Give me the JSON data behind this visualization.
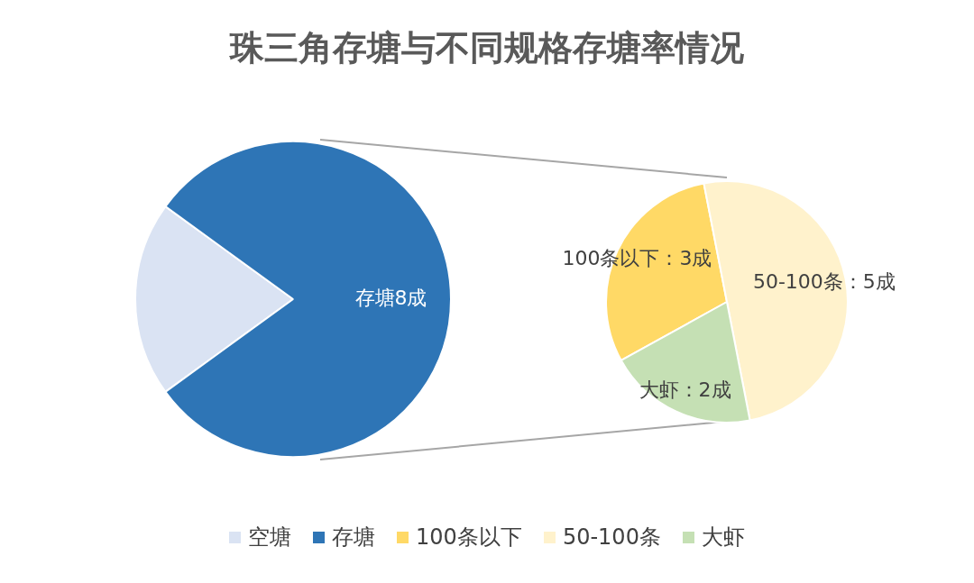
{
  "chart_data": [
    {
      "type": "pie",
      "title": "珠三角存塘与不同规格存塘率情况",
      "categories": [
        "空塘",
        "存塘"
      ],
      "values": [
        2,
        8
      ],
      "colors": [
        "#dae3f3",
        "#2e75b6"
      ],
      "value_labels": [
        null,
        "存塘8成"
      ],
      "legend": "bottom"
    },
    {
      "type": "pie",
      "categories": [
        "100条以下",
        "50-100条",
        "大虾"
      ],
      "values": [
        3,
        5,
        2
      ],
      "colors": [
        "#ffd966",
        "#fff2cc",
        "#c5e0b4"
      ],
      "value_labels": [
        "100条以下：3成",
        "50-100条：5成",
        "大虾：2成"
      ],
      "legend": "bottom"
    }
  ]
}
